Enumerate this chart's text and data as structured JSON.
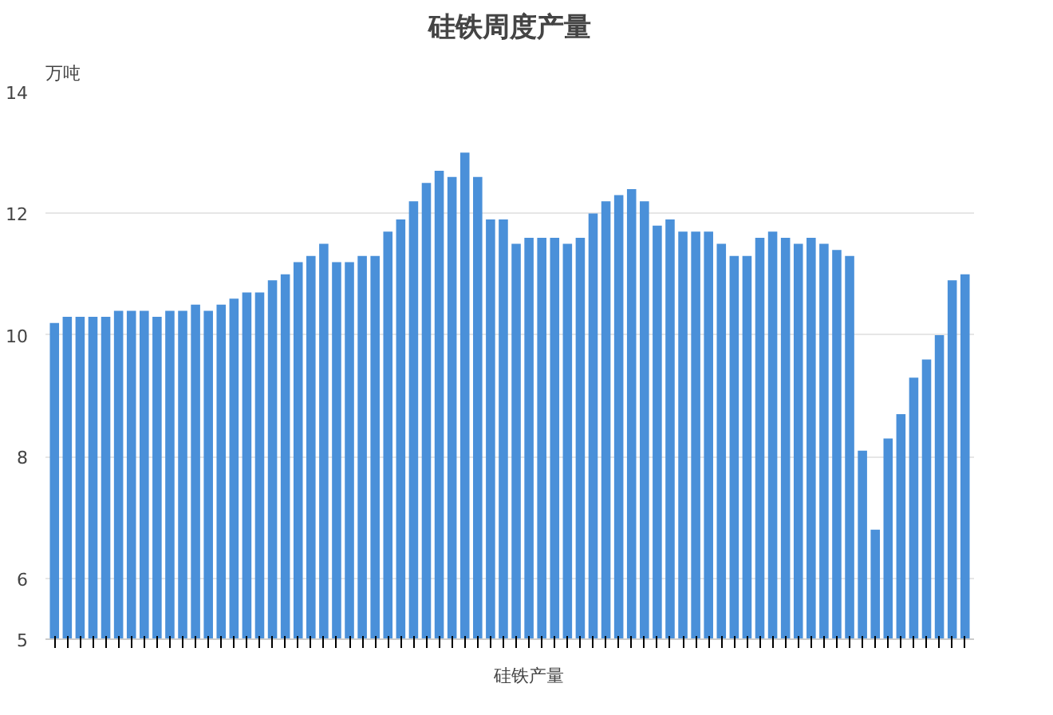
{
  "chart_data": {
    "type": "bar",
    "title": "硅铁周度产量",
    "ylabel": "万吨",
    "categories": [
      null,
      null,
      null,
      null,
      null,
      null,
      null,
      null,
      null,
      null,
      null,
      null,
      null,
      null,
      null,
      null,
      null,
      null,
      null,
      null,
      null,
      null,
      null,
      null,
      null,
      null,
      null,
      null,
      null,
      null,
      null,
      null,
      null,
      null,
      null,
      null,
      null,
      null,
      null,
      null,
      null,
      null,
      null,
      null,
      null,
      null,
      null,
      null,
      null,
      null,
      null,
      null,
      null,
      null,
      null,
      null,
      null,
      null,
      null,
      null,
      null,
      null,
      null,
      null,
      null,
      null,
      null,
      null,
      null,
      null,
      null,
      null
    ],
    "series": [
      {
        "name": "硅铁产量",
        "color": "#4a90d9",
        "values": [
          10.2,
          10.3,
          10.3,
          10.3,
          10.3,
          10.4,
          10.4,
          10.4,
          10.3,
          10.4,
          10.4,
          10.5,
          10.4,
          10.5,
          10.6,
          10.7,
          10.7,
          10.9,
          11.0,
          11.2,
          11.3,
          11.5,
          11.2,
          11.2,
          11.3,
          11.3,
          11.7,
          11.9,
          12.2,
          12.5,
          12.7,
          12.6,
          13.0,
          12.6,
          11.9,
          11.9,
          11.5,
          11.6,
          11.6,
          11.6,
          11.5,
          11.6,
          12.0,
          12.2,
          12.3,
          12.4,
          12.2,
          11.8,
          11.9,
          11.7,
          11.7,
          11.7,
          11.5,
          11.3,
          11.3,
          11.6,
          11.7,
          11.6,
          11.5,
          11.6,
          11.5,
          11.4,
          11.3,
          8.1,
          6.8,
          8.3,
          8.7,
          9.3,
          9.6,
          10.0,
          10.9,
          11.0
        ]
      }
    ],
    "ylim": [
      5,
      14
    ],
    "yticks": [
      5,
      6,
      8,
      10,
      12,
      14
    ],
    "grid": "y",
    "legend": "bottom"
  }
}
